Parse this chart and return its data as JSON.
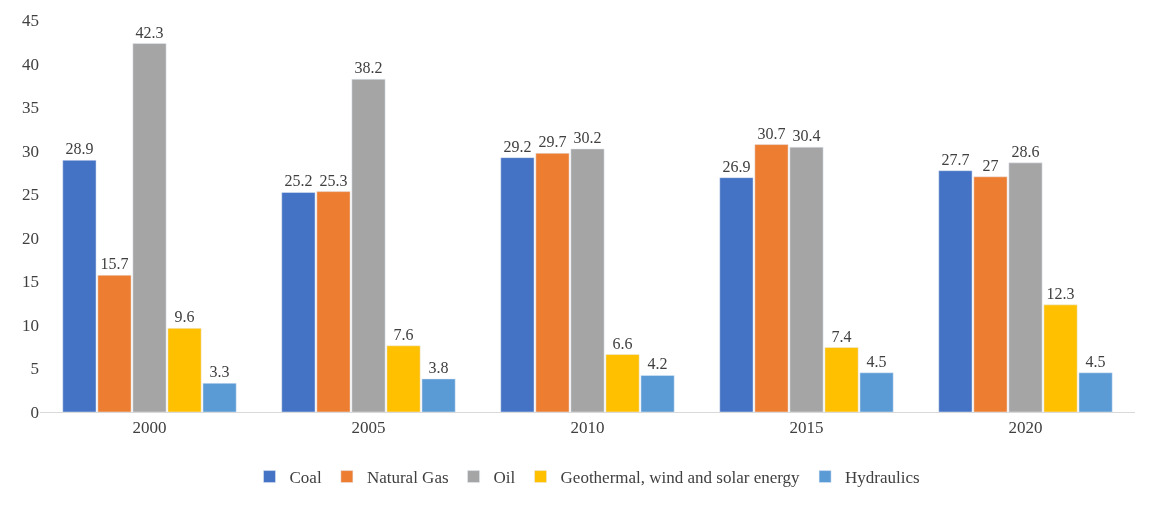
{
  "chart_data": {
    "type": "bar",
    "categories": [
      "2000",
      "2005",
      "2010",
      "2015",
      "2020"
    ],
    "series": [
      {
        "name": "Coal",
        "color": "#4472c4",
        "values": [
          28.9,
          25.2,
          29.2,
          26.9,
          27.7
        ]
      },
      {
        "name": "Natural Gas",
        "color": "#ed7d31",
        "values": [
          15.7,
          25.3,
          29.7,
          30.7,
          27
        ]
      },
      {
        "name": "Oil",
        "color": "#a5a5a5",
        "values": [
          42.3,
          38.2,
          30.2,
          30.4,
          28.6
        ]
      },
      {
        "name": "Geothermal, wind and solar energy",
        "color": "#ffc000",
        "values": [
          9.6,
          7.6,
          6.6,
          7.4,
          12.3
        ]
      },
      {
        "name": "Hydraulics",
        "color": "#5b9bd5",
        "values": [
          3.3,
          3.8,
          4.2,
          4.5,
          4.5
        ]
      }
    ],
    "ylim": [
      0,
      45
    ],
    "yticks": [
      0,
      5,
      10,
      15,
      20,
      25,
      30,
      35,
      40,
      45
    ],
    "grid": false,
    "legend": "bottom",
    "data_labels": true
  }
}
